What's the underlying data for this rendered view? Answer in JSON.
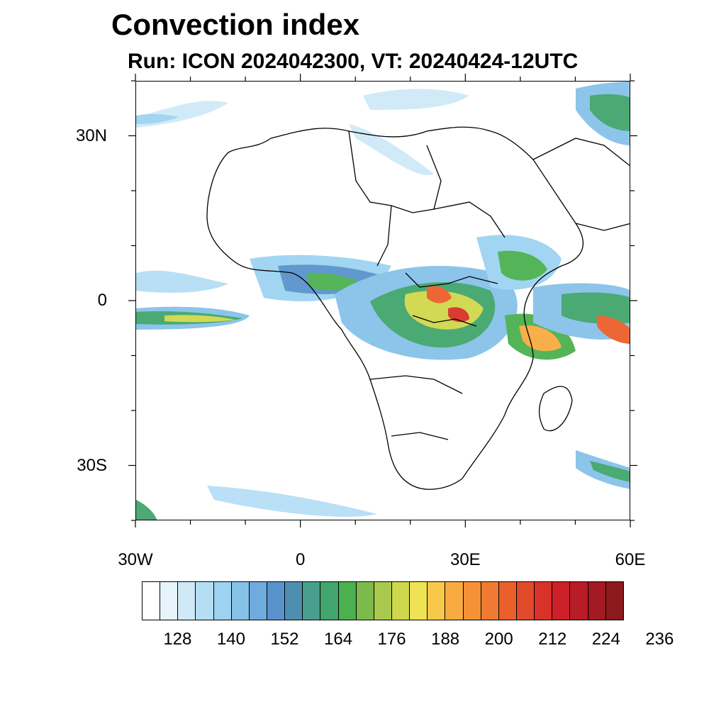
{
  "title": "Convection index",
  "subtitle": "Run: ICON 2024042300,  VT: 20240424-12UTC",
  "map": {
    "lon_range": [
      -30,
      60
    ],
    "lat_range": [
      -40,
      40
    ],
    "lat_ticks": [
      {
        "value": 30,
        "label": "30N"
      },
      {
        "value": 0,
        "label": "0"
      },
      {
        "value": -30,
        "label": "30S"
      }
    ],
    "lon_ticks": [
      {
        "value": -30,
        "label": "30W"
      },
      {
        "value": 0,
        "label": "0"
      },
      {
        "value": 30,
        "label": "30E"
      },
      {
        "value": 60,
        "label": "60E"
      }
    ]
  },
  "colorbar": {
    "colors": [
      "#ffffff",
      "#e8f4fb",
      "#cfe9f7",
      "#b5def5",
      "#9dd3f1",
      "#86c2e8",
      "#6fabde",
      "#5993cc",
      "#4d8fb0",
      "#4a9e8e",
      "#42a56d",
      "#4bb050",
      "#7dba4c",
      "#a8c94c",
      "#cfd84c",
      "#f0e255",
      "#f8c84a",
      "#f8ab41",
      "#f59238",
      "#f07a31",
      "#eb5f2b",
      "#e14a2a",
      "#d93228",
      "#cc2028",
      "#b81c27",
      "#a31a22",
      "#8b1a1c"
    ],
    "labels": [
      "128",
      "140",
      "152",
      "164",
      "176",
      "188",
      "200",
      "212",
      "224",
      "236"
    ]
  },
  "coastline_icon": "africa-outline"
}
